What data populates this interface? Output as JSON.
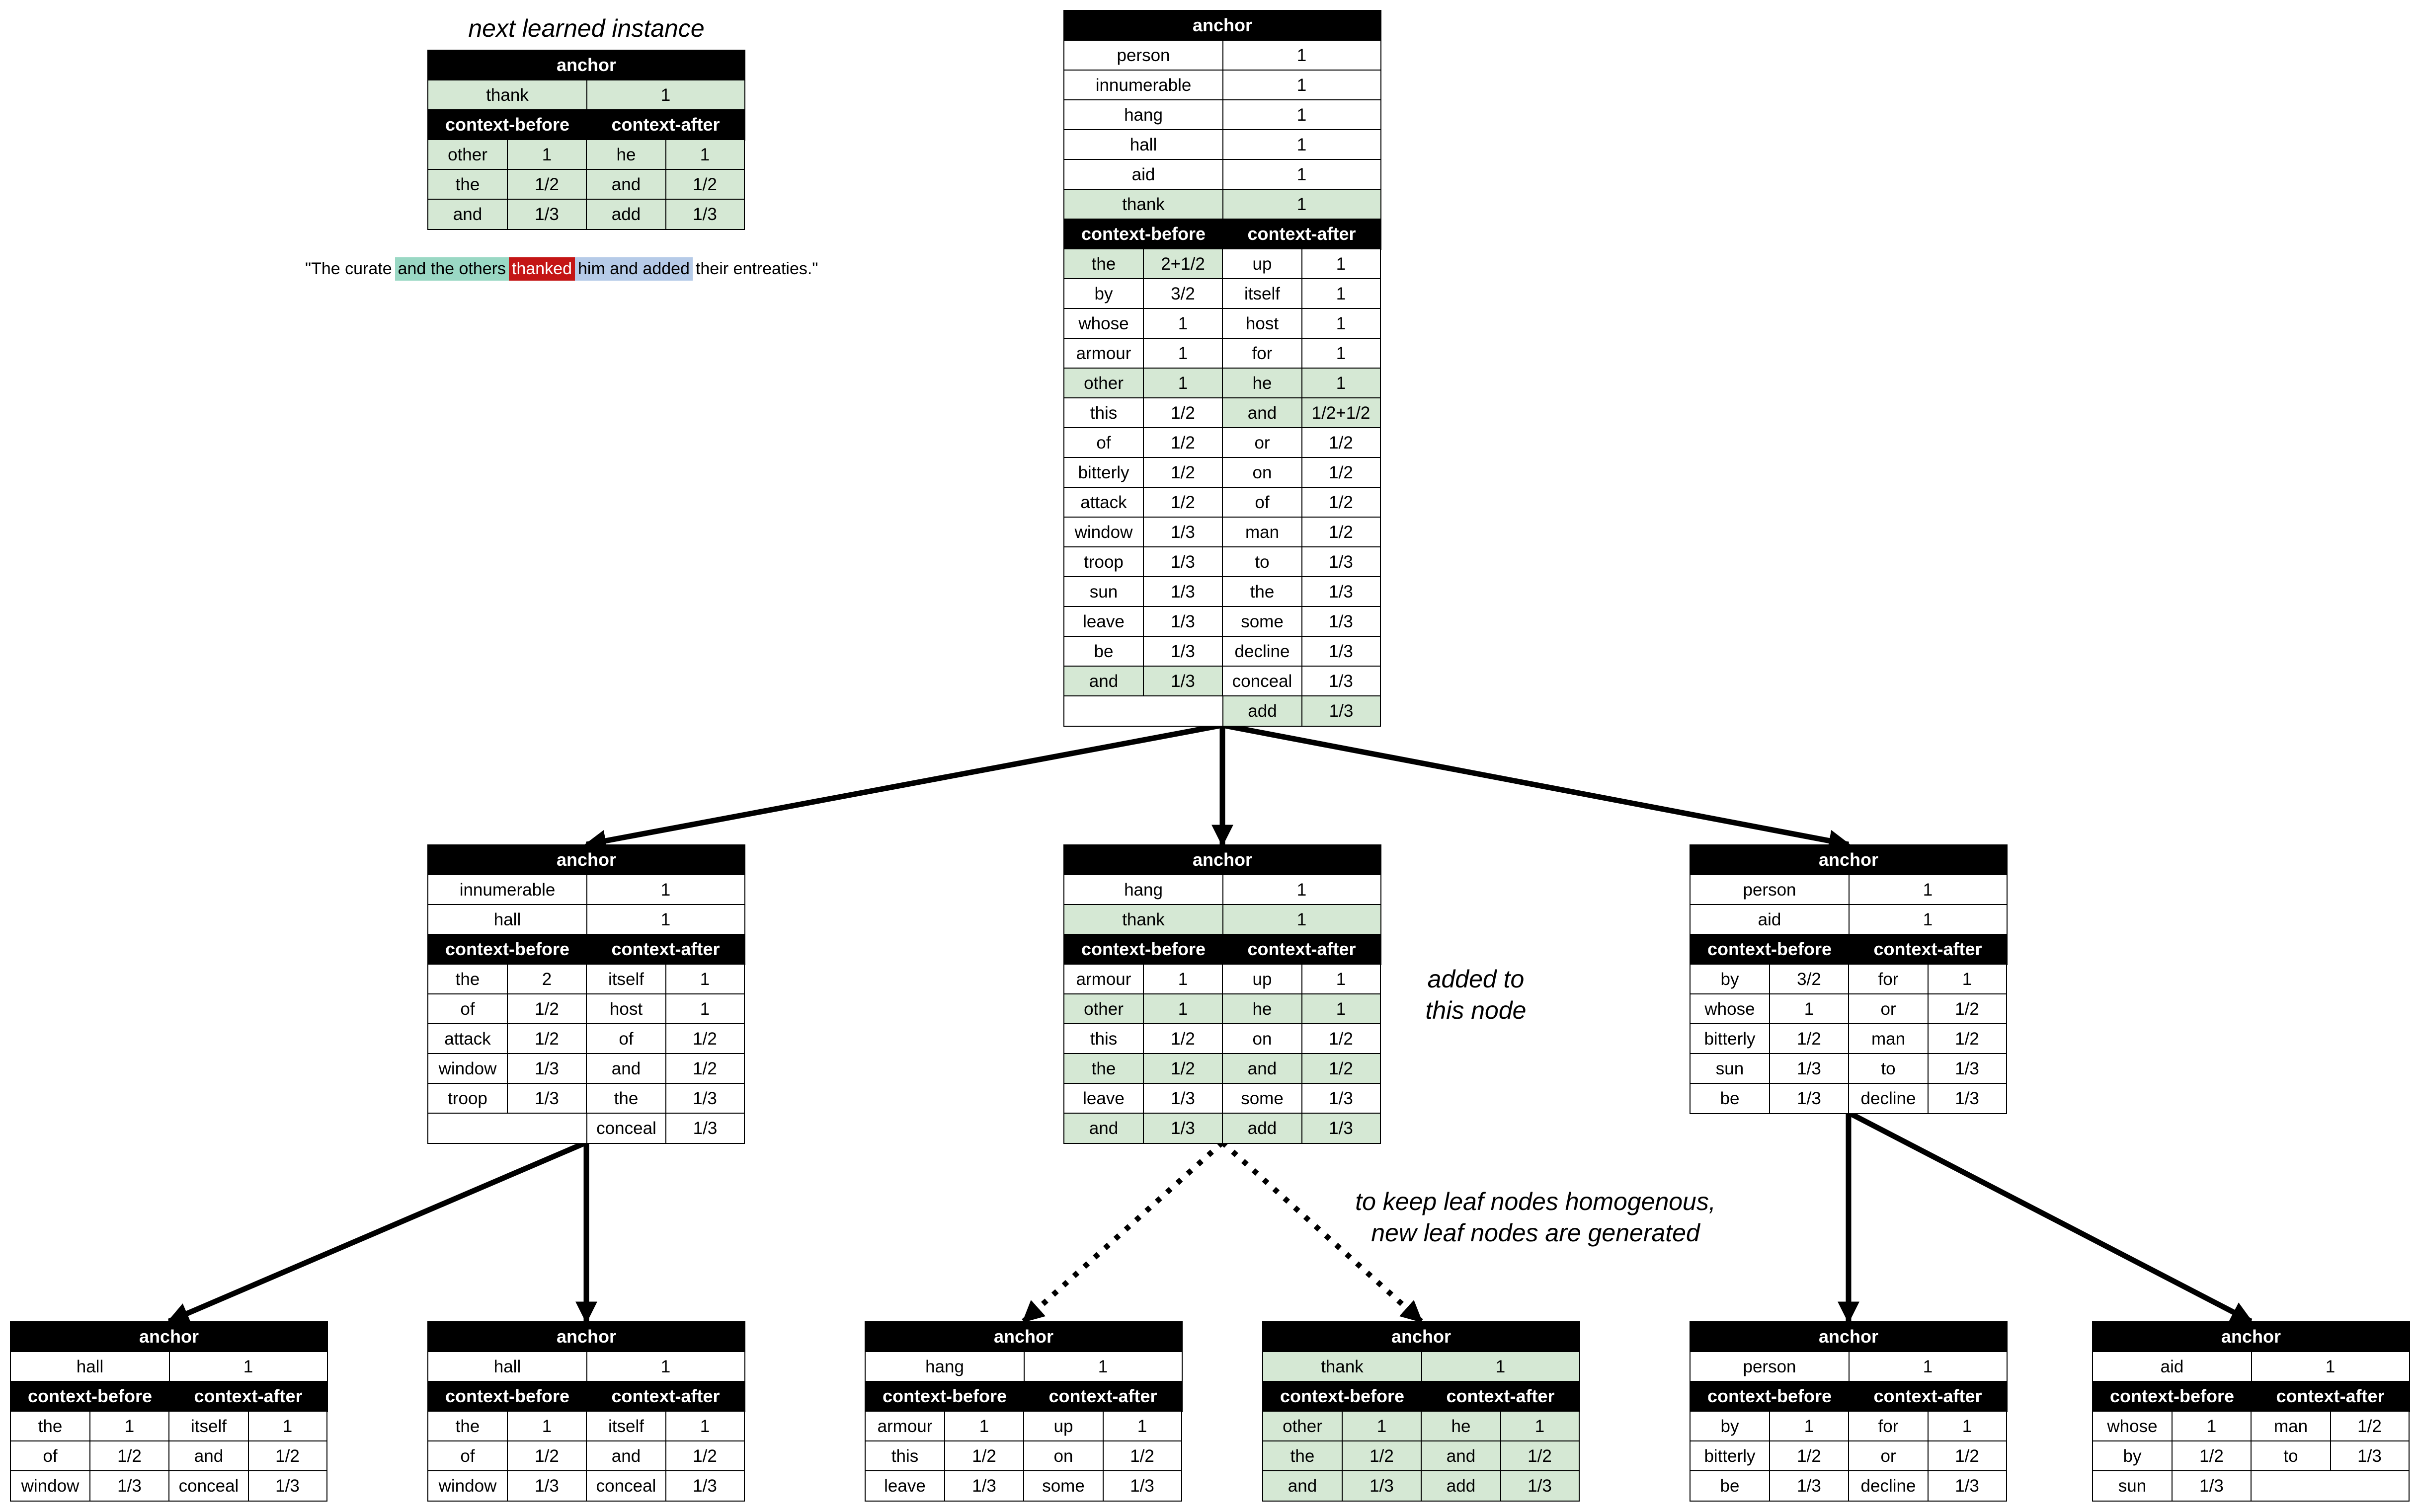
{
  "header_label": "anchor",
  "context_before_label": "context-before",
  "context_after_label": "context-after",
  "instance_title": "next learned instance",
  "sentence": [
    {
      "text": "\"The curate",
      "style": "plain"
    },
    {
      "text": "and the others",
      "style": "green"
    },
    {
      "text": "thanked",
      "style": "red"
    },
    {
      "text": "him and added",
      "style": "blue"
    },
    {
      "text": "their entreaties.\"",
      "style": "plain"
    }
  ],
  "annotation_added": "added to\nthis node",
  "annotation_leaf": "to keep leaf nodes homogenous,\nnew leaf nodes are generated",
  "nodes": [
    {
      "id": "instance",
      "anchors": [
        [
          "thank",
          "1",
          true
        ]
      ],
      "ctx": [
        [
          "other",
          "1",
          "he",
          "1",
          true
        ],
        [
          "the",
          "1/2",
          "and",
          "1/2",
          true
        ],
        [
          "and",
          "1/3",
          "add",
          "1/3",
          true
        ]
      ]
    },
    {
      "id": "root",
      "anchors": [
        [
          "person",
          "1",
          false
        ],
        [
          "innumerable",
          "1",
          false
        ],
        [
          "hang",
          "1",
          false
        ],
        [
          "hall",
          "1",
          false
        ],
        [
          "aid",
          "1",
          false
        ],
        [
          "thank",
          "1",
          true
        ]
      ],
      "ctx": [
        [
          "the",
          "2+1/2",
          "up",
          "1",
          true,
          false
        ],
        [
          "by",
          "3/2",
          "itself",
          "1",
          false,
          false
        ],
        [
          "whose",
          "1",
          "host",
          "1",
          false,
          false
        ],
        [
          "armour",
          "1",
          "for",
          "1",
          false,
          false
        ],
        [
          "other",
          "1",
          "he",
          "1",
          true,
          true
        ],
        [
          "this",
          "1/2",
          "and",
          "1/2+1/2",
          false,
          true
        ],
        [
          "of",
          "1/2",
          "or",
          "1/2",
          false,
          false
        ],
        [
          "bitterly",
          "1/2",
          "on",
          "1/2",
          false,
          false
        ],
        [
          "attack",
          "1/2",
          "of",
          "1/2",
          false,
          false
        ],
        [
          "window",
          "1/3",
          "man",
          "1/2",
          false,
          false
        ],
        [
          "troop",
          "1/3",
          "to",
          "1/3",
          false,
          false
        ],
        [
          "sun",
          "1/3",
          "the",
          "1/3",
          false,
          false
        ],
        [
          "leave",
          "1/3",
          "some",
          "1/3",
          false,
          false
        ],
        [
          "be",
          "1/3",
          "decline",
          "1/3",
          false,
          false
        ],
        [
          "and",
          "1/3",
          "conceal",
          "1/3",
          true,
          false
        ],
        [
          "",
          "",
          "add",
          "1/3",
          false,
          true
        ]
      ]
    },
    {
      "id": "mid-left",
      "anchors": [
        [
          "innumerable",
          "1",
          false
        ],
        [
          "hall",
          "1",
          false
        ]
      ],
      "ctx": [
        [
          "the",
          "2",
          "itself",
          "1"
        ],
        [
          "of",
          "1/2",
          "host",
          "1"
        ],
        [
          "attack",
          "1/2",
          "of",
          "1/2"
        ],
        [
          "window",
          "1/3",
          "and",
          "1/2"
        ],
        [
          "troop",
          "1/3",
          "the",
          "1/3"
        ],
        [
          "",
          "",
          "conceal",
          "1/3"
        ]
      ]
    },
    {
      "id": "mid-center",
      "anchors": [
        [
          "hang",
          "1",
          false
        ],
        [
          "thank",
          "1",
          true
        ]
      ],
      "ctx": [
        [
          "armour",
          "1",
          "up",
          "1",
          false
        ],
        [
          "other",
          "1",
          "he",
          "1",
          true
        ],
        [
          "this",
          "1/2",
          "on",
          "1/2",
          false
        ],
        [
          "the",
          "1/2",
          "and",
          "1/2",
          true
        ],
        [
          "leave",
          "1/3",
          "some",
          "1/3",
          false
        ],
        [
          "and",
          "1/3",
          "add",
          "1/3",
          true
        ]
      ]
    },
    {
      "id": "mid-right",
      "anchors": [
        [
          "person",
          "1",
          false
        ],
        [
          "aid",
          "1",
          false
        ]
      ],
      "ctx": [
        [
          "by",
          "3/2",
          "for",
          "1"
        ],
        [
          "whose",
          "1",
          "or",
          "1/2"
        ],
        [
          "bitterly",
          "1/2",
          "man",
          "1/2"
        ],
        [
          "sun",
          "1/3",
          "to",
          "1/3"
        ],
        [
          "be",
          "1/3",
          "decline",
          "1/3"
        ]
      ]
    },
    {
      "id": "leaf-1",
      "anchors": [
        [
          "hall",
          "1",
          false
        ]
      ],
      "ctx": [
        [
          "the",
          "1",
          "itself",
          "1"
        ],
        [
          "of",
          "1/2",
          "and",
          "1/2"
        ],
        [
          "window",
          "1/3",
          "conceal",
          "1/3"
        ]
      ]
    },
    {
      "id": "leaf-2",
      "anchors": [
        [
          "hall",
          "1",
          false
        ]
      ],
      "ctx": [
        [
          "the",
          "1",
          "itself",
          "1"
        ],
        [
          "of",
          "1/2",
          "and",
          "1/2"
        ],
        [
          "window",
          "1/3",
          "conceal",
          "1/3"
        ]
      ]
    },
    {
      "id": "leaf-3",
      "anchors": [
        [
          "hang",
          "1",
          false
        ]
      ],
      "ctx": [
        [
          "armour",
          "1",
          "up",
          "1"
        ],
        [
          "this",
          "1/2",
          "on",
          "1/2"
        ],
        [
          "leave",
          "1/3",
          "some",
          "1/3"
        ]
      ]
    },
    {
      "id": "leaf-4",
      "anchors": [
        [
          "thank",
          "1",
          true
        ]
      ],
      "ctx": [
        [
          "other",
          "1",
          "he",
          "1",
          true
        ],
        [
          "the",
          "1/2",
          "and",
          "1/2",
          true
        ],
        [
          "and",
          "1/3",
          "add",
          "1/3",
          true
        ]
      ]
    },
    {
      "id": "leaf-5",
      "anchors": [
        [
          "person",
          "1",
          false
        ]
      ],
      "ctx": [
        [
          "by",
          "1",
          "for",
          "1"
        ],
        [
          "bitterly",
          "1/2",
          "or",
          "1/2"
        ],
        [
          "be",
          "1/3",
          "decline",
          "1/3"
        ]
      ]
    },
    {
      "id": "leaf-6",
      "anchors": [
        [
          "aid",
          "1",
          false
        ]
      ],
      "ctx": [
        [
          "whose",
          "1",
          "man",
          "1/2"
        ],
        [
          "by",
          "1/2",
          "to",
          "1/3"
        ],
        [
          "sun",
          "1/3",
          "",
          ""
        ]
      ]
    }
  ],
  "edges": [
    {
      "from": "root",
      "to": "mid-left",
      "style": "solid"
    },
    {
      "from": "root",
      "to": "mid-center",
      "style": "solid"
    },
    {
      "from": "root",
      "to": "mid-right",
      "style": "solid"
    },
    {
      "from": "mid-left",
      "to": "leaf-1",
      "style": "solid"
    },
    {
      "from": "mid-left",
      "to": "leaf-2",
      "style": "solid"
    },
    {
      "from": "mid-center",
      "to": "leaf-3",
      "style": "dotted"
    },
    {
      "from": "mid-center",
      "to": "leaf-4",
      "style": "dotted"
    },
    {
      "from": "mid-right",
      "to": "leaf-5",
      "style": "solid"
    },
    {
      "from": "mid-right",
      "to": "leaf-6",
      "style": "solid"
    }
  ]
}
